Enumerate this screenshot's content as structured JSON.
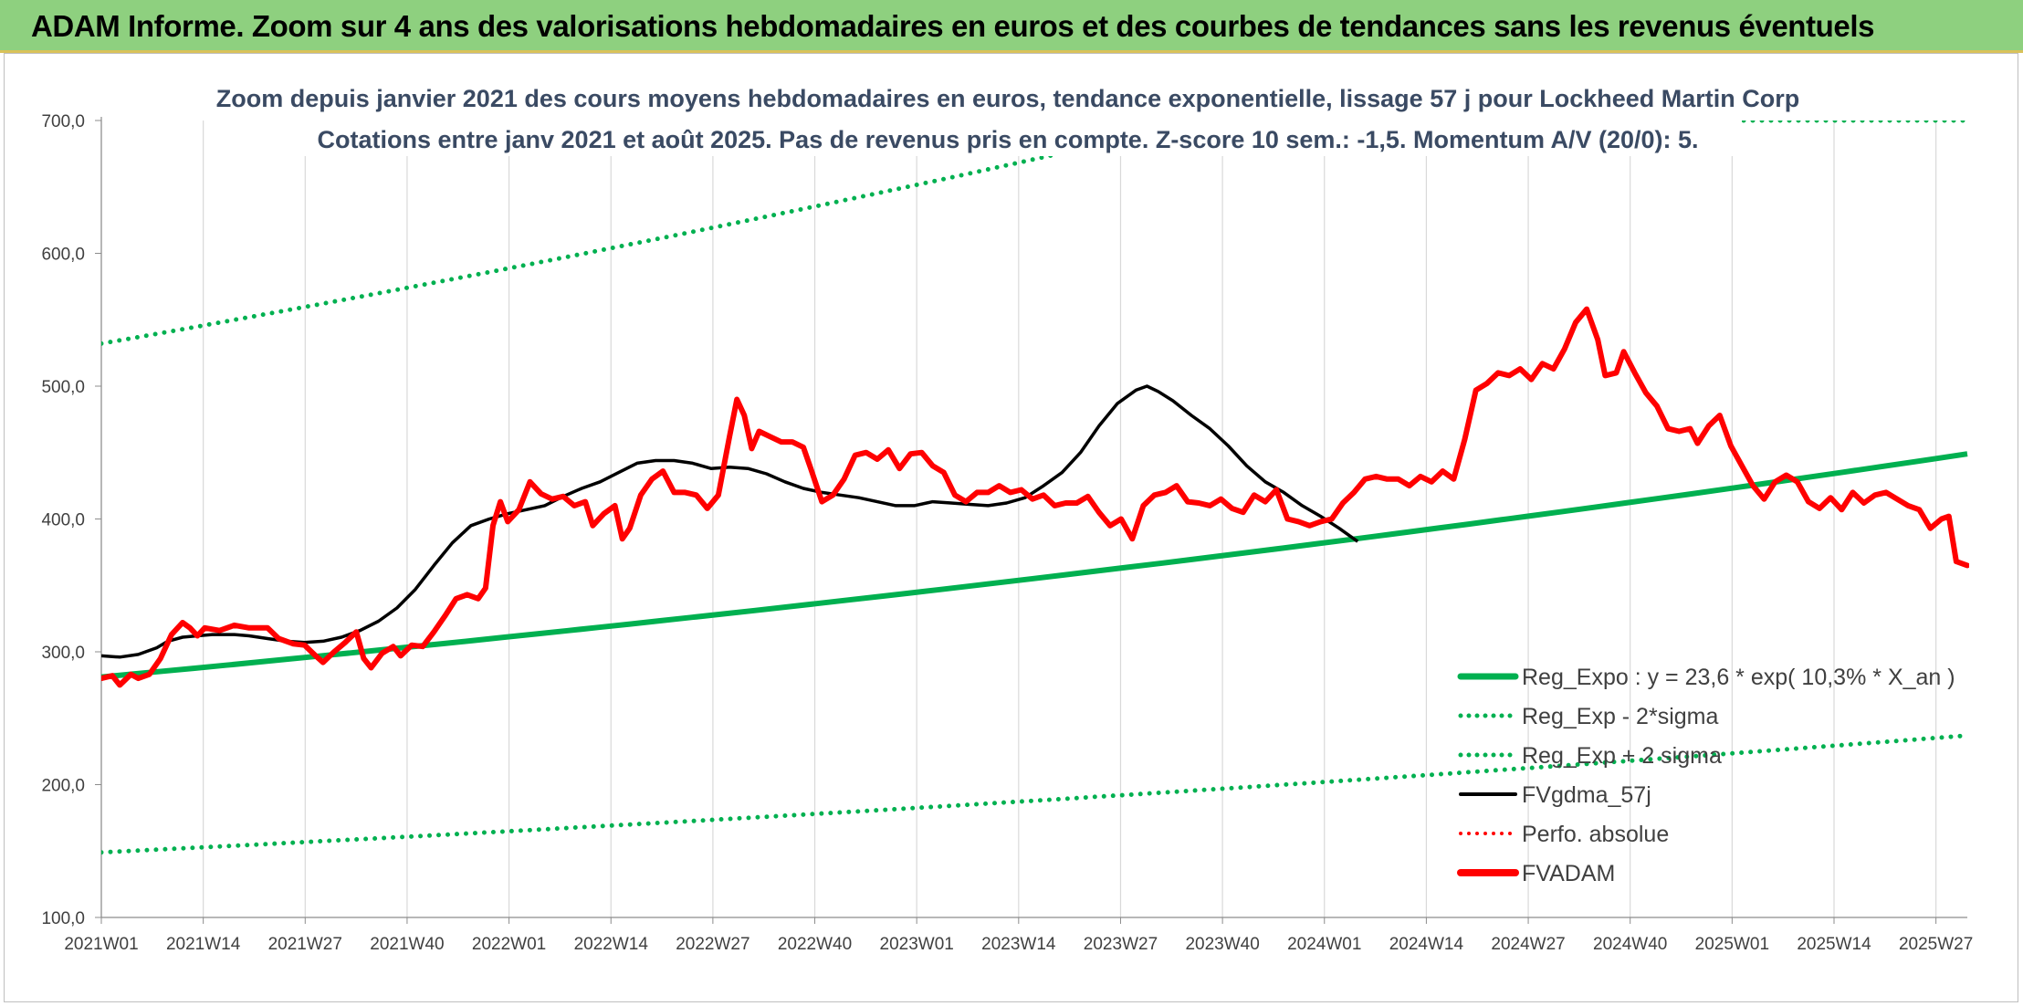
{
  "banner": {
    "title": "ADAM Informe. Zoom sur 4 ans des valorisations hebdomadaires en euros et des courbes de tendances sans les revenus éventuels"
  },
  "colors": {
    "regression": "#00b050",
    "moving_average": "#000000",
    "price": "#ff0000",
    "banner": "#8ed07f"
  },
  "chart_data": {
    "type": "line",
    "title": "Zoom depuis janvier 2021 des cours moyens hebdomadaires en euros, tendance exponentielle, lissage 57 j pour Lockheed Martin Corp",
    "subtitle": "Cotations entre janv 2021 et août 2025. Pas de revenus pris en compte. Z-score 10 sem.: -1,5. Momentum A/V (20/0): 5.",
    "xlabel": "",
    "ylabel": "",
    "ylim": [
      100,
      700
    ],
    "y_ticks": [
      "100,0",
      "200,0",
      "300,0",
      "400,0",
      "500,0",
      "600,0",
      "700,0"
    ],
    "x_ticks": [
      "2021W01",
      "2021W14",
      "2021W27",
      "2021W40",
      "2022W01",
      "2022W14",
      "2022W27",
      "2022W40",
      "2023W01",
      "2023W14",
      "2023W27",
      "2023W40",
      "2024W01",
      "2024W14",
      "2024W27",
      "2024W40",
      "2025W01",
      "2025W14",
      "2025W27"
    ],
    "week_range": [
      0,
      238
    ],
    "grid": "vertical",
    "legend_position": "bottom-right",
    "series": [
      {
        "name": "Reg_Expo : y = 23,6 * exp( 10,3% *  X_an )",
        "style": "solid-thick",
        "color": "#00b050",
        "start": 281,
        "end": 449
      },
      {
        "name": "Reg_Exp - 2*sigma",
        "style": "dotted",
        "color": "#00b050",
        "start": 149,
        "end": 237
      },
      {
        "name": "Reg_Exp + 2 sigma",
        "style": "dotted",
        "color": "#00b050",
        "start": 532,
        "end": 846
      },
      {
        "name": "FVgdma_57j",
        "style": "solid",
        "color": "#000000",
        "points": [
          [
            0,
            297
          ],
          [
            5,
            296
          ],
          [
            10,
            298
          ],
          [
            15,
            303
          ],
          [
            18,
            308
          ],
          [
            22,
            311
          ],
          [
            26,
            312
          ],
          [
            30,
            313
          ],
          [
            36,
            313
          ],
          [
            40,
            312
          ],
          [
            45,
            310
          ],
          [
            50,
            308
          ],
          [
            55,
            307
          ],
          [
            60,
            308
          ],
          [
            65,
            311
          ],
          [
            70,
            316
          ],
          [
            75,
            323
          ],
          [
            80,
            333
          ],
          [
            85,
            347
          ],
          [
            90,
            365
          ],
          [
            95,
            382
          ],
          [
            100,
            395
          ],
          [
            105,
            400
          ],
          [
            110,
            404
          ],
          [
            115,
            407
          ],
          [
            120,
            410
          ],
          [
            125,
            417
          ],
          [
            130,
            423
          ],
          [
            135,
            428
          ],
          [
            140,
            435
          ],
          [
            145,
            442
          ],
          [
            150,
            444
          ],
          [
            155,
            444
          ],
          [
            160,
            442
          ],
          [
            165,
            438
          ],
          [
            170,
            439
          ],
          [
            175,
            438
          ],
          [
            180,
            434
          ],
          [
            185,
            428
          ],
          [
            190,
            423
          ],
          [
            195,
            420
          ],
          [
            200,
            418
          ],
          [
            205,
            416
          ],
          [
            210,
            413
          ],
          [
            215,
            410
          ],
          [
            220,
            410
          ],
          [
            225,
            413
          ],
          [
            230,
            412
          ],
          [
            235,
            411
          ],
          [
            240,
            410
          ],
          [
            245,
            412
          ],
          [
            250,
            416
          ],
          [
            255,
            425
          ],
          [
            260,
            435
          ],
          [
            265,
            450
          ],
          [
            270,
            470
          ],
          [
            275,
            487
          ],
          [
            280,
            497
          ],
          [
            283,
            500
          ],
          [
            286,
            496
          ],
          [
            290,
            489
          ],
          [
            295,
            478
          ],
          [
            300,
            468
          ],
          [
            305,
            455
          ],
          [
            310,
            440
          ],
          [
            315,
            428
          ],
          [
            320,
            420
          ],
          [
            325,
            410
          ],
          [
            330,
            402
          ],
          [
            335,
            393
          ],
          [
            340,
            383
          ]
        ]
      },
      {
        "name": "Perfo. absolue",
        "style": "dotted",
        "color": "#ff0000",
        "points": []
      },
      {
        "name": "FVADAM",
        "style": "solid-thick",
        "color": "#ff0000",
        "points": [
          [
            0,
            280
          ],
          [
            3,
            282
          ],
          [
            5,
            275
          ],
          [
            8,
            283
          ],
          [
            10,
            280
          ],
          [
            13,
            283
          ],
          [
            16,
            295
          ],
          [
            19,
            313
          ],
          [
            22,
            322
          ],
          [
            24,
            318
          ],
          [
            26,
            312
          ],
          [
            28,
            318
          ],
          [
            32,
            316
          ],
          [
            36,
            320
          ],
          [
            40,
            318
          ],
          [
            45,
            318
          ],
          [
            48,
            310
          ],
          [
            52,
            306
          ],
          [
            55,
            305
          ],
          [
            58,
            297
          ],
          [
            60,
            292
          ],
          [
            63,
            300
          ],
          [
            66,
            307
          ],
          [
            69,
            315
          ],
          [
            71,
            295
          ],
          [
            73,
            288
          ],
          [
            76,
            299
          ],
          [
            79,
            304
          ],
          [
            81,
            297
          ],
          [
            84,
            305
          ],
          [
            87,
            304
          ],
          [
            90,
            315
          ],
          [
            93,
            327
          ],
          [
            96,
            340
          ],
          [
            99,
            343
          ],
          [
            102,
            340
          ],
          [
            104,
            348
          ],
          [
            106,
            395
          ],
          [
            108,
            413
          ],
          [
            110,
            398
          ],
          [
            113,
            407
          ],
          [
            116,
            428
          ],
          [
            119,
            419
          ],
          [
            122,
            415
          ],
          [
            125,
            417
          ],
          [
            128,
            410
          ],
          [
            131,
            413
          ],
          [
            133,
            395
          ],
          [
            136,
            404
          ],
          [
            139,
            410
          ],
          [
            141,
            385
          ],
          [
            143,
            393
          ],
          [
            146,
            418
          ],
          [
            149,
            430
          ],
          [
            152,
            436
          ],
          [
            155,
            420
          ],
          [
            158,
            420
          ],
          [
            161,
            418
          ],
          [
            164,
            408
          ],
          [
            167,
            418
          ],
          [
            170,
            462
          ],
          [
            172,
            490
          ],
          [
            174,
            478
          ],
          [
            176,
            453
          ],
          [
            178,
            466
          ],
          [
            181,
            462
          ],
          [
            184,
            458
          ],
          [
            187,
            458
          ],
          [
            190,
            454
          ],
          [
            192,
            438
          ],
          [
            195,
            413
          ],
          [
            198,
            418
          ],
          [
            201,
            430
          ],
          [
            204,
            448
          ],
          [
            207,
            450
          ],
          [
            210,
            445
          ],
          [
            213,
            452
          ],
          [
            216,
            438
          ],
          [
            219,
            449
          ],
          [
            222,
            450
          ],
          [
            225,
            440
          ],
          [
            228,
            435
          ],
          [
            231,
            418
          ],
          [
            234,
            413
          ],
          [
            237,
            420
          ],
          [
            240,
            420
          ],
          [
            243,
            425
          ],
          [
            246,
            420
          ],
          [
            249,
            422
          ],
          [
            252,
            415
          ],
          [
            255,
            418
          ],
          [
            258,
            410
          ],
          [
            261,
            412
          ],
          [
            264,
            412
          ],
          [
            267,
            417
          ],
          [
            270,
            405
          ],
          [
            273,
            395
          ],
          [
            276,
            400
          ],
          [
            279,
            385
          ],
          [
            282,
            410
          ],
          [
            285,
            418
          ],
          [
            288,
            420
          ],
          [
            291,
            425
          ],
          [
            294,
            413
          ],
          [
            297,
            412
          ],
          [
            300,
            410
          ],
          [
            303,
            415
          ],
          [
            306,
            408
          ],
          [
            309,
            405
          ],
          [
            312,
            418
          ],
          [
            315,
            413
          ],
          [
            318,
            422
          ],
          [
            321,
            400
          ],
          [
            324,
            398
          ],
          [
            327,
            395
          ],
          [
            330,
            398
          ],
          [
            333,
            400
          ],
          [
            336,
            412
          ],
          [
            339,
            420
          ],
          [
            342,
            430
          ],
          [
            345,
            432
          ],
          [
            348,
            430
          ],
          [
            351,
            430
          ],
          [
            354,
            425
          ],
          [
            357,
            432
          ],
          [
            360,
            428
          ],
          [
            363,
            436
          ],
          [
            366,
            430
          ],
          [
            369,
            460
          ],
          [
            372,
            497
          ],
          [
            375,
            502
          ],
          [
            378,
            510
          ],
          [
            381,
            508
          ],
          [
            384,
            513
          ],
          [
            387,
            505
          ],
          [
            390,
            517
          ],
          [
            393,
            513
          ],
          [
            396,
            528
          ],
          [
            399,
            548
          ],
          [
            402,
            558
          ],
          [
            405,
            535
          ],
          [
            407,
            508
          ],
          [
            410,
            510
          ],
          [
            412,
            526
          ],
          [
            415,
            510
          ],
          [
            418,
            495
          ],
          [
            421,
            485
          ],
          [
            424,
            468
          ],
          [
            427,
            466
          ],
          [
            430,
            468
          ],
          [
            432,
            457
          ],
          [
            435,
            470
          ],
          [
            438,
            478
          ],
          [
            441,
            455
          ],
          [
            444,
            440
          ],
          [
            447,
            425
          ],
          [
            450,
            415
          ],
          [
            453,
            428
          ],
          [
            456,
            433
          ],
          [
            459,
            428
          ],
          [
            462,
            413
          ],
          [
            465,
            408
          ],
          [
            468,
            416
          ],
          [
            471,
            407
          ],
          [
            474,
            420
          ],
          [
            477,
            412
          ],
          [
            480,
            418
          ],
          [
            483,
            420
          ],
          [
            486,
            415
          ],
          [
            489,
            410
          ],
          [
            492,
            407
          ],
          [
            495,
            393
          ],
          [
            498,
            400
          ],
          [
            500,
            402
          ],
          [
            502,
            368
          ],
          [
            505,
            365
          ]
        ]
      }
    ]
  }
}
